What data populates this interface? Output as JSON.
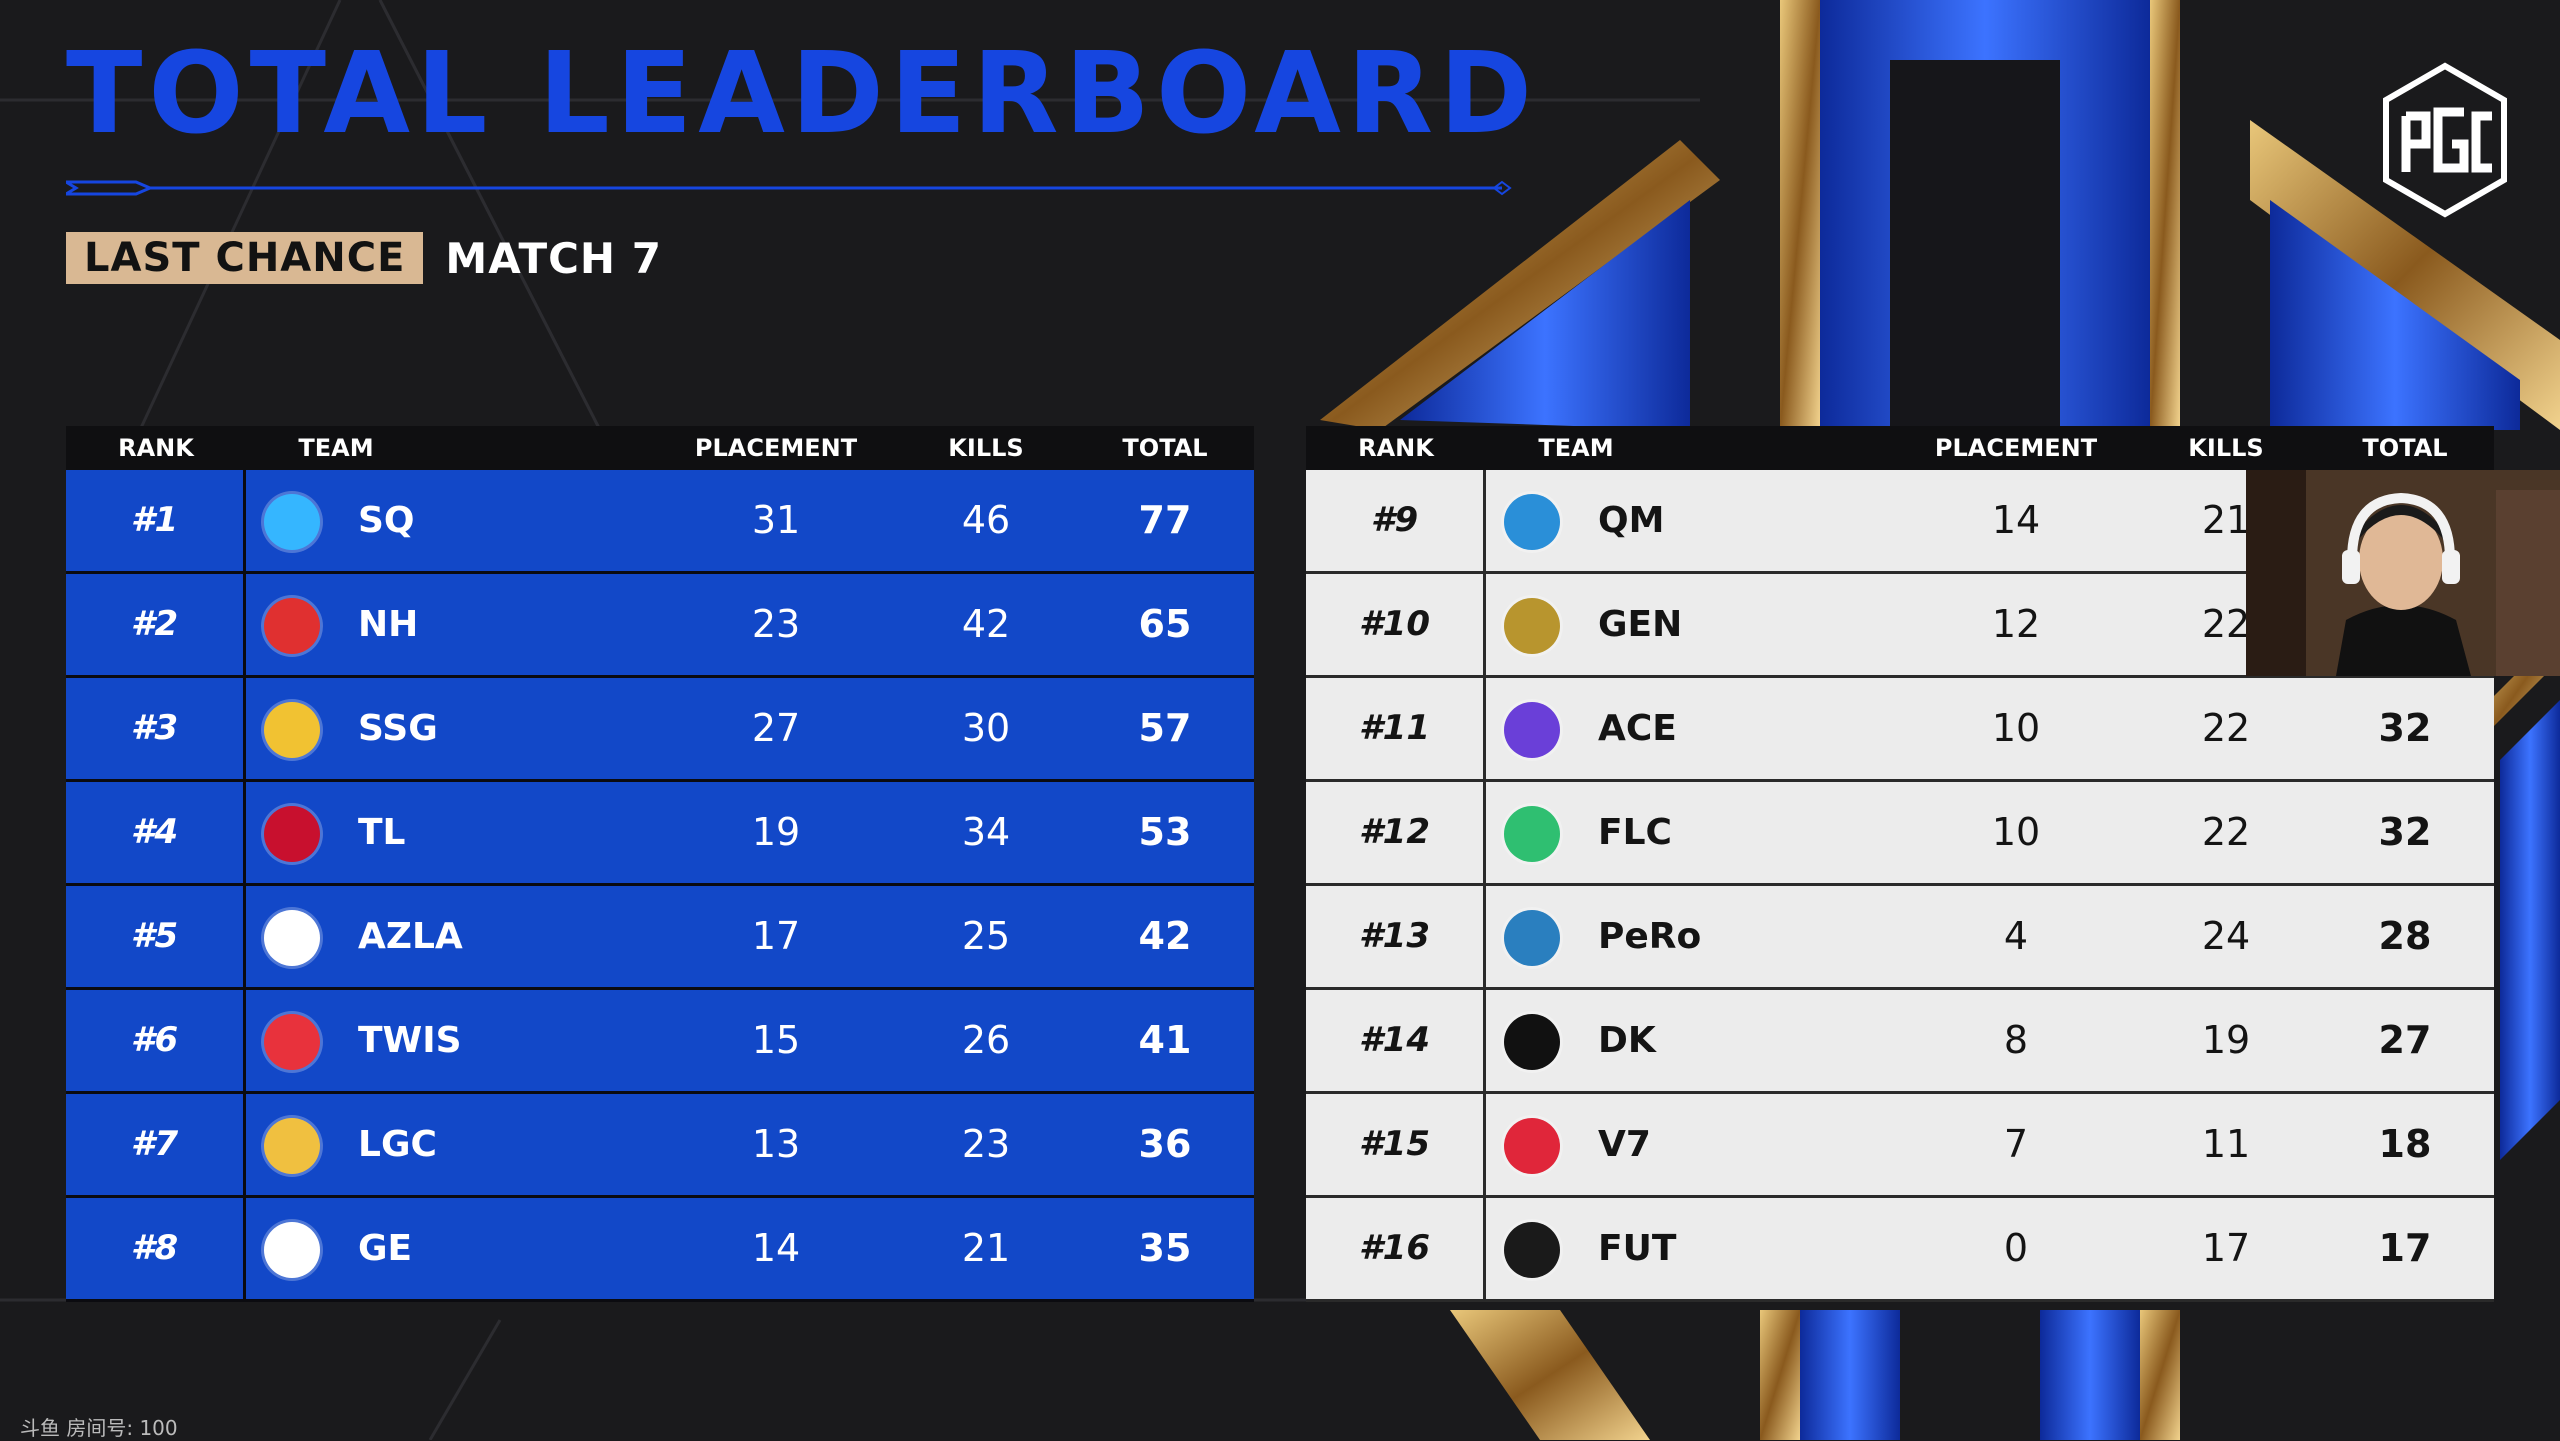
{
  "header": {
    "title": "TOTAL LEADERBOARD",
    "stage_tag": "LAST CHANCE",
    "match_label": "MATCH 7"
  },
  "columns": [
    "RANK",
    "TEAM",
    "PLACEMENT",
    "KILLS",
    "TOTAL"
  ],
  "colors": {
    "title": "#1646e0",
    "left_rows": "#1248c8",
    "right_rows": "#ececec",
    "stage_tag": "#d9b893",
    "background": "#1a1a1c"
  },
  "left_table": [
    {
      "rank": "#1",
      "team": "SQ",
      "placement": "31",
      "kills": "46",
      "total": "77",
      "icon": "sq-logo-icon",
      "color": "#35b6ff"
    },
    {
      "rank": "#2",
      "team": "NH",
      "placement": "23",
      "kills": "42",
      "total": "65",
      "icon": "nh-logo-icon",
      "color": "#e03030"
    },
    {
      "rank": "#3",
      "team": "SSG",
      "placement": "27",
      "kills": "30",
      "total": "57",
      "icon": "ssg-logo-icon",
      "color": "#f1c232"
    },
    {
      "rank": "#4",
      "team": "TL",
      "placement": "19",
      "kills": "34",
      "total": "53",
      "icon": "tl-logo-icon",
      "color": "#c8102e"
    },
    {
      "rank": "#5",
      "team": "AZLA",
      "placement": "17",
      "kills": "25",
      "total": "42",
      "icon": "azla-logo-icon",
      "color": "#ffffff"
    },
    {
      "rank": "#6",
      "team": "TWIS",
      "placement": "15",
      "kills": "26",
      "total": "41",
      "icon": "twis-logo-icon",
      "color": "#e8323c"
    },
    {
      "rank": "#7",
      "team": "LGC",
      "placement": "13",
      "kills": "23",
      "total": "36",
      "icon": "lgc-logo-icon",
      "color": "#f0c040"
    },
    {
      "rank": "#8",
      "team": "GE",
      "placement": "14",
      "kills": "21",
      "total": "35",
      "icon": "ge-logo-icon",
      "color": "#ffffff"
    }
  ],
  "right_table": [
    {
      "rank": "#9",
      "team": "QM",
      "placement": "14",
      "kills": "21",
      "total": "",
      "icon": "qm-logo-icon",
      "color": "#2a8fd8"
    },
    {
      "rank": "#10",
      "team": "GEN",
      "placement": "12",
      "kills": "22",
      "total": "",
      "icon": "gen-logo-icon",
      "color": "#b8952e"
    },
    {
      "rank": "#11",
      "team": "ACE",
      "placement": "10",
      "kills": "22",
      "total": "32",
      "icon": "ace-logo-icon",
      "color": "#6a3fd8"
    },
    {
      "rank": "#12",
      "team": "FLC",
      "placement": "10",
      "kills": "22",
      "total": "32",
      "icon": "flc-logo-icon",
      "color": "#2fbf71"
    },
    {
      "rank": "#13",
      "team": "PeRo",
      "placement": "4",
      "kills": "24",
      "total": "28",
      "icon": "pero-logo-icon",
      "color": "#2a7fbf"
    },
    {
      "rank": "#14",
      "team": "DK",
      "placement": "8",
      "kills": "19",
      "total": "27",
      "icon": "dk-logo-icon",
      "color": "#111111"
    },
    {
      "rank": "#15",
      "team": "V7",
      "placement": "7",
      "kills": "11",
      "total": "18",
      "icon": "v7-logo-icon",
      "color": "#e0263a"
    },
    {
      "rank": "#16",
      "team": "FUT",
      "placement": "0",
      "kills": "17",
      "total": "17",
      "icon": "fut-logo-icon",
      "color": "#1a1a1a"
    }
  ],
  "watermark": "斗鱼 房间号: 100"
}
